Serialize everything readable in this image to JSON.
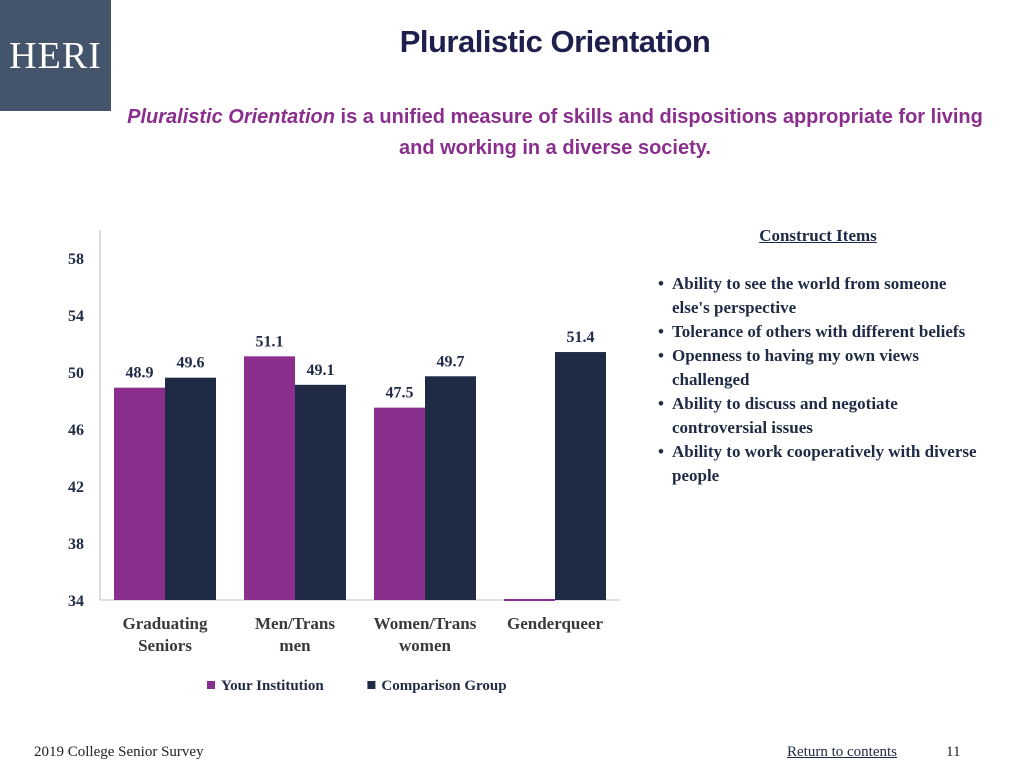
{
  "logo": {
    "text": "HERI",
    "bg": "#44546a"
  },
  "header": {
    "title": "Pluralistic Orientation",
    "subtitle_italic": "Pluralistic Orientation",
    "subtitle_rest": " is a unified measure of skills and dispositions appropriate for living and working in a diverse society."
  },
  "construct": {
    "heading": "Construct Items",
    "items": [
      "Ability to see the world from someone else's perspective",
      "Tolerance of others with different beliefs",
      "Openness to having my own views challenged",
      "Ability to discuss and negotiate controversial issues",
      "Ability to work cooperatively with diverse people"
    ]
  },
  "footer": {
    "survey": "2019 College Senior Survey",
    "return_link": "Return to contents",
    "page": "11"
  },
  "chart_data": {
    "type": "bar",
    "categories": [
      [
        "Graduating",
        "Seniors"
      ],
      [
        "Men/Trans",
        "men"
      ],
      [
        "Women/Trans",
        "women"
      ],
      [
        "Genderqueer"
      ]
    ],
    "series": [
      {
        "name": "Your Institution",
        "color": "#8b2f8e",
        "values": [
          48.9,
          51.1,
          47.5,
          null
        ],
        "labels": [
          "48.9",
          "51.1",
          "47.5",
          ""
        ]
      },
      {
        "name": "Comparison Group",
        "color": "#1f2a44",
        "values": [
          49.6,
          49.1,
          49.7,
          51.4
        ],
        "labels": [
          "49.6",
          "49.1",
          "49.7",
          "51.4"
        ]
      }
    ],
    "yticks": [
      34,
      38,
      42,
      46,
      50,
      54,
      58
    ],
    "ylim": [
      34,
      58
    ],
    "legend_position": "bottom"
  }
}
